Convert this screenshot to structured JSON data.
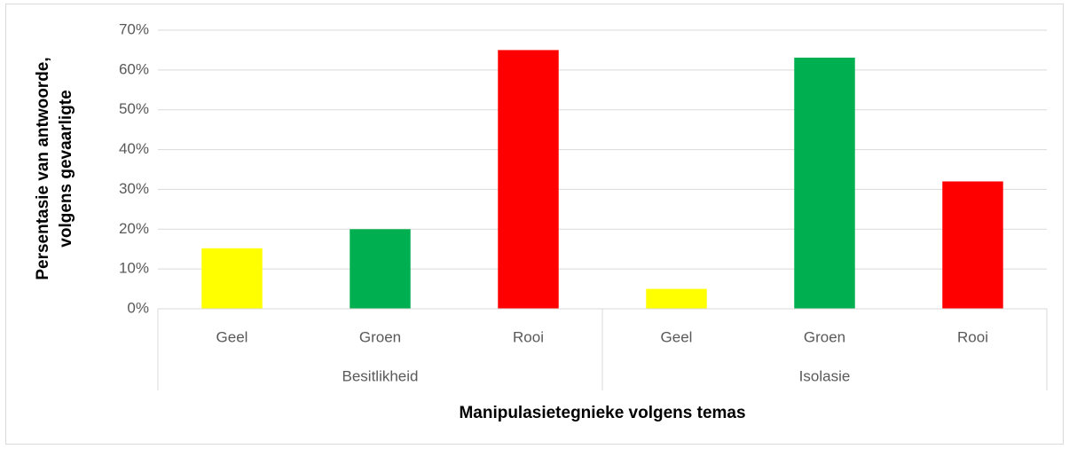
{
  "chart_data": {
    "type": "bar",
    "xlabel": "Manipulasietegnieke volgens temas",
    "ylabel": [
      "Persentasie van antwoorde,",
      "volgens gevaarligte"
    ],
    "groups": [
      {
        "name": "Besitlikheid",
        "categories": [
          "Geel",
          "Groen",
          "Rooi"
        ],
        "values": [
          15.2,
          20,
          65
        ],
        "colors": [
          "#ffff00",
          "#00b050",
          "#ff0000"
        ]
      },
      {
        "name": "Isolasie",
        "categories": [
          "Geel",
          "Groen",
          "Rooi"
        ],
        "values": [
          5,
          63.1,
          32
        ],
        "colors": [
          "#ffff00",
          "#00b050",
          "#ff0000"
        ]
      }
    ],
    "ylim": [
      0,
      70
    ],
    "yticks": [
      {
        "value": 0,
        "label": "0%"
      },
      {
        "value": 10,
        "label": "10%"
      },
      {
        "value": 20,
        "label": "20%"
      },
      {
        "value": 30,
        "label": "30%"
      },
      {
        "value": 40,
        "label": "40%"
      },
      {
        "value": 50,
        "label": "50%"
      },
      {
        "value": 60,
        "label": "60%"
      },
      {
        "value": 70,
        "label": "70%"
      }
    ],
    "grid": true
  }
}
